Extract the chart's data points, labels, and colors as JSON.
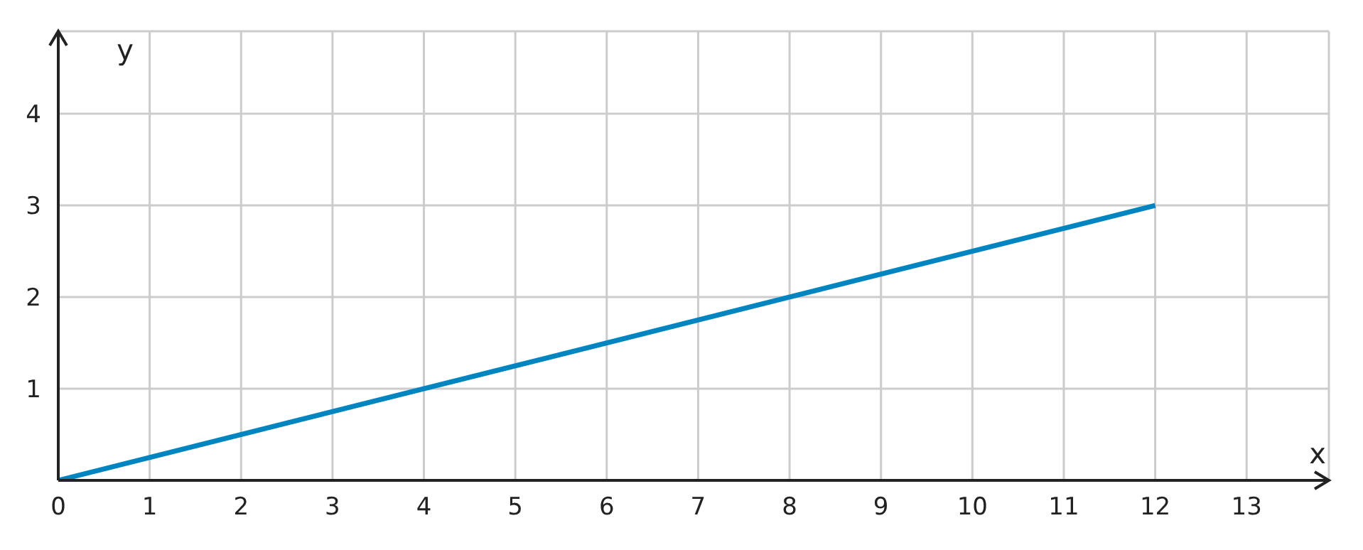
{
  "chart_data": {
    "type": "line",
    "xlabel": "x",
    "ylabel": "y",
    "x": [
      0,
      12
    ],
    "series": [
      {
        "color": "#0085c0",
        "values": [
          0,
          3
        ]
      }
    ],
    "xlim": [
      0,
      13.9
    ],
    "xticks": [
      0,
      1,
      2,
      3,
      4,
      5,
      6,
      7,
      8,
      9,
      10,
      11,
      12,
      13
    ],
    "ylim": [
      0,
      4.9
    ],
    "yticks": [
      {
        "value": 0,
        "label": null
      },
      1,
      2,
      3,
      4
    ],
    "grid": true,
    "marker": "none",
    "line_style": "solid"
  }
}
